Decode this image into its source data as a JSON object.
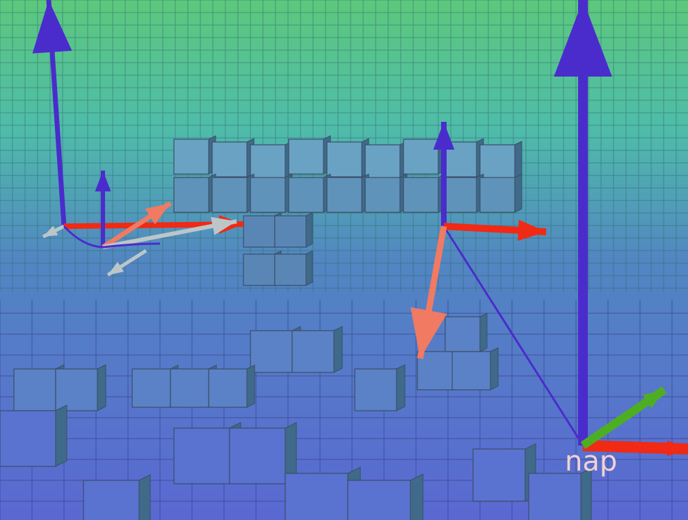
{
  "scene": {
    "frame_label": "nap"
  }
}
